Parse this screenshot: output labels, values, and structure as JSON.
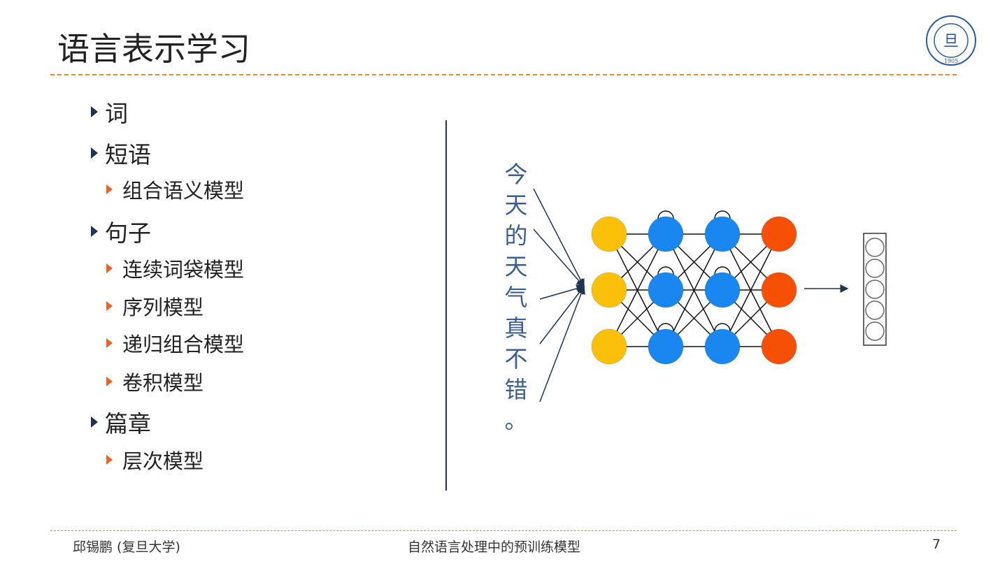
{
  "title": "语言表示学习",
  "outline": [
    {
      "level": 1,
      "text": "词"
    },
    {
      "level": 1,
      "text": "短语"
    },
    {
      "level": 2,
      "text": "组合语义模型"
    },
    {
      "level": 1,
      "text": "句子"
    },
    {
      "level": 2,
      "text": "连续词袋模型"
    },
    {
      "level": 2,
      "text": "序列模型"
    },
    {
      "level": 2,
      "text": "递归组合模型"
    },
    {
      "level": 2,
      "text": "卷积模型"
    },
    {
      "level": 1,
      "text": "篇章"
    },
    {
      "level": 2,
      "text": "层次模型"
    }
  ],
  "diagram": {
    "input_chars": [
      "今",
      "天",
      "的",
      "天",
      "气",
      "真",
      "不",
      "错",
      "。"
    ],
    "layer_colors": [
      "#fbc10a",
      "#1a86f0",
      "#1a86f0",
      "#f55005"
    ],
    "output_vector_size": 5
  },
  "logo": {
    "text": "FUDAN UNIVERSITY 1905"
  },
  "footer": {
    "author": "邱锡鹏 (复旦大学)",
    "course": "自然语言处理中的预训练模型",
    "page": "7"
  }
}
